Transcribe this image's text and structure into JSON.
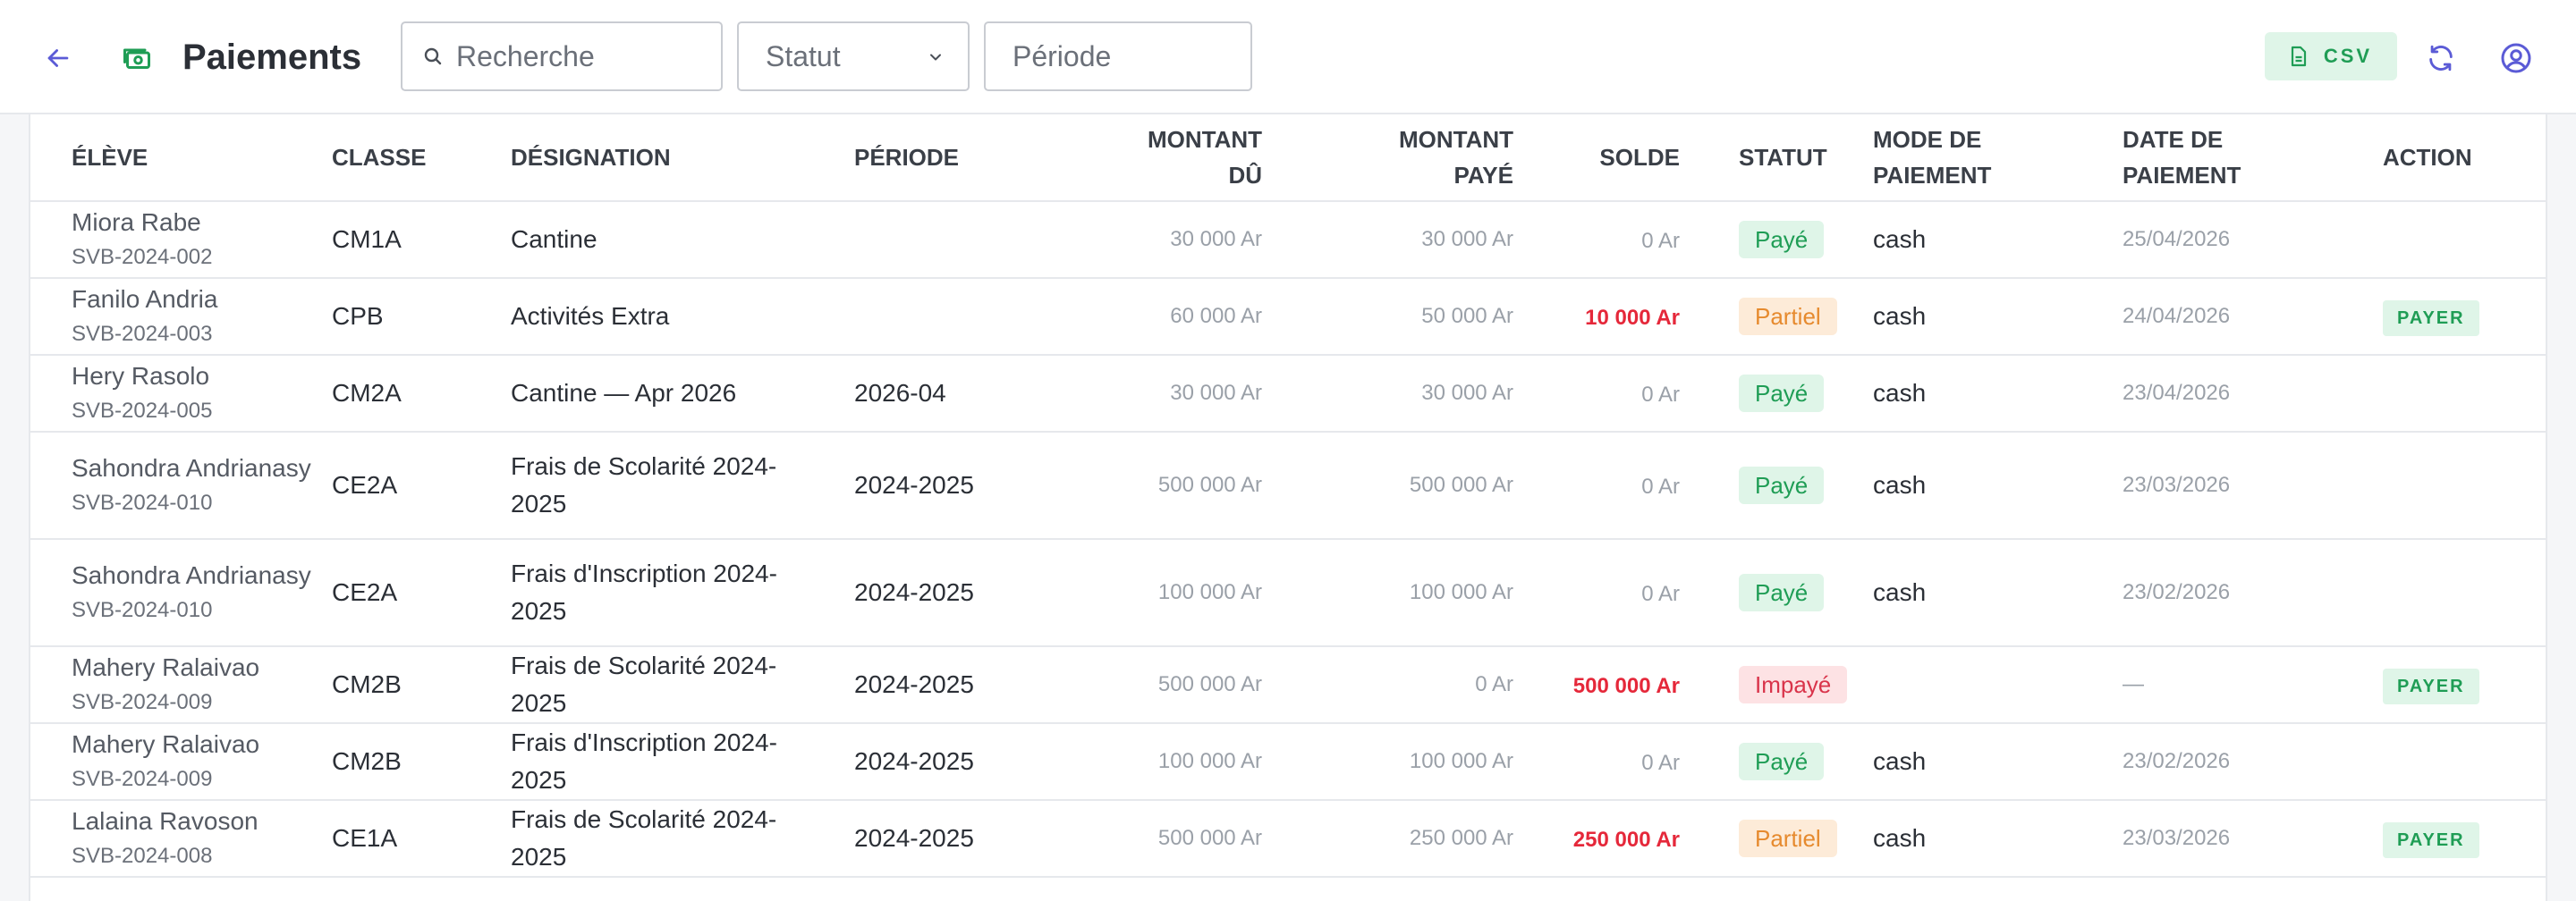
{
  "header": {
    "title": "Paiements",
    "search_placeholder": "Recherche",
    "statut_placeholder": "Statut",
    "periode_placeholder": "Période",
    "csv_label": "CSV",
    "icons": {
      "back": "arrow-left-icon",
      "payments": "cash-icon",
      "search": "search-icon",
      "chevron": "chevron-down-icon",
      "csv": "file-icon",
      "refresh": "refresh-icon",
      "account": "user-circle-icon"
    }
  },
  "colors": {
    "accent": "#5b5bd6",
    "green": "#1f9d55",
    "red": "#e5283a",
    "orange": "#e68a2e"
  },
  "table": {
    "columns": {
      "eleve": "ÉLÈVE",
      "classe": "CLASSE",
      "designation": "DÉSIGNATION",
      "periode": "PÉRIODE",
      "montant_du_1": "MONTANT",
      "montant_du_2": "DÛ",
      "montant_paye_1": "MONTANT",
      "montant_paye_2": "PAYÉ",
      "solde": "SOLDE",
      "statut": "STATUT",
      "mode_1": "MODE DE",
      "mode_2": "PAIEMENT",
      "date_1": "DATE DE",
      "date_2": "PAIEMENT",
      "action": "ACTION"
    },
    "rows": [
      {
        "name": "Miora Rabe",
        "code": "SVB-2024-002",
        "classe": "CM1A",
        "designation": "Cantine",
        "periode": "",
        "montant_du": "30 000 Ar",
        "montant_paye": "30 000 Ar",
        "solde": "0 Ar",
        "solde_red": false,
        "statut": "Payé",
        "statut_type": "paye",
        "mode": "cash",
        "date": "25/04/2026",
        "action": ""
      },
      {
        "name": "Fanilo Andria",
        "code": "SVB-2024-003",
        "classe": "CPB",
        "designation": "Activités Extra",
        "periode": "",
        "montant_du": "60 000 Ar",
        "montant_paye": "50 000 Ar",
        "solde": "10 000 Ar",
        "solde_red": true,
        "statut": "Partiel",
        "statut_type": "partiel",
        "mode": "cash",
        "date": "24/04/2026",
        "action": "PAYER"
      },
      {
        "name": "Hery Rasolo",
        "code": "SVB-2024-005",
        "classe": "CM2A",
        "designation": "Cantine — Apr 2026",
        "periode": "2026-04",
        "montant_du": "30 000 Ar",
        "montant_paye": "30 000 Ar",
        "solde": "0 Ar",
        "solde_red": false,
        "statut": "Payé",
        "statut_type": "paye",
        "mode": "cash",
        "date": "23/04/2026",
        "action": ""
      },
      {
        "name": "Sahondra Andrianasy",
        "code": "SVB-2024-010",
        "classe": "CE2A",
        "designation": "Frais de Scolarité 2024-2025",
        "periode": "2024-2025",
        "montant_du": "500 000 Ar",
        "montant_paye": "500 000 Ar",
        "solde": "0 Ar",
        "solde_red": false,
        "statut": "Payé",
        "statut_type": "paye",
        "mode": "cash",
        "date": "23/03/2026",
        "action": ""
      },
      {
        "name": "Sahondra Andrianasy",
        "code": "SVB-2024-010",
        "classe": "CE2A",
        "designation": "Frais d'Inscription 2024-2025",
        "periode": "2024-2025",
        "montant_du": "100 000 Ar",
        "montant_paye": "100 000 Ar",
        "solde": "0 Ar",
        "solde_red": false,
        "statut": "Payé",
        "statut_type": "paye",
        "mode": "cash",
        "date": "23/02/2026",
        "action": ""
      },
      {
        "name": "Mahery Ralaivao",
        "code": "SVB-2024-009",
        "classe": "CM2B",
        "designation": "Frais de Scolarité 2024-2025",
        "periode": "2024-2025",
        "montant_du": "500 000 Ar",
        "montant_paye": "0 Ar",
        "solde": "500 000 Ar",
        "solde_red": true,
        "statut": "Impayé",
        "statut_type": "impaye",
        "mode": "",
        "date": "—",
        "action": "PAYER"
      },
      {
        "name": "Mahery Ralaivao",
        "code": "SVB-2024-009",
        "classe": "CM2B",
        "designation": "Frais d'Inscription 2024-2025",
        "periode": "2024-2025",
        "montant_du": "100 000 Ar",
        "montant_paye": "100 000 Ar",
        "solde": "0 Ar",
        "solde_red": false,
        "statut": "Payé",
        "statut_type": "paye",
        "mode": "cash",
        "date": "23/02/2026",
        "action": ""
      },
      {
        "name": "Lalaina Ravoson",
        "code": "SVB-2024-008",
        "classe": "CE1A",
        "designation": "Frais de Scolarité 2024-2025",
        "periode": "2024-2025",
        "montant_du": "500 000 Ar",
        "montant_paye": "250 000 Ar",
        "solde": "250 000 Ar",
        "solde_red": true,
        "statut": "Partiel",
        "statut_type": "partiel",
        "mode": "cash",
        "date": "23/03/2026",
        "action": "PAYER"
      }
    ]
  }
}
